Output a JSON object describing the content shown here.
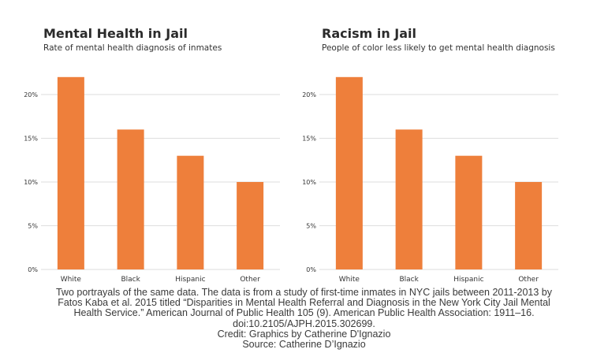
{
  "chart_data": [
    {
      "type": "bar",
      "title": "Mental Health in Jail",
      "subtitle": "Rate of mental health diagnosis of inmates",
      "categories": [
        "White",
        "Black",
        "Hispanic",
        "Other"
      ],
      "values": [
        22,
        16,
        13,
        10
      ],
      "ytick_labels": [
        "0%",
        "5%",
        "10%",
        "15%",
        "20%"
      ],
      "yticks": [
        0,
        5,
        10,
        15,
        20
      ],
      "ylim": [
        0,
        24
      ],
      "grid": true,
      "bar_color": "#ee7f3b"
    },
    {
      "type": "bar",
      "title": "Racism in Jail",
      "subtitle": "People of color less likely to get mental health diagnosis",
      "categories": [
        "White",
        "Black",
        "Hispanic",
        "Other"
      ],
      "values": [
        22,
        16,
        13,
        10
      ],
      "ytick_labels": [
        "0%",
        "5%",
        "10%",
        "15%",
        "20%"
      ],
      "yticks": [
        0,
        5,
        10,
        15,
        20
      ],
      "ylim": [
        0,
        24
      ],
      "grid": true,
      "bar_color": "#ee7f3b"
    }
  ],
  "caption": {
    "lines": [
      "Two portrayals of the same data. The data is from a study of first-time inmates in NYC jails between 2011-2013 by",
      "Fatos Kaba et al. 2015 titled “Disparities in Mental Health Referral and Diagnosis in the New York City Jail Mental",
      "Health Service.” American Journal of Public Health 105 (9). American Public Health Association: 1911–16.",
      "doi:10.2105/AJPH.2015.302699.",
      "Credit: Graphics by Catherine D'Ignazio",
      "Source: Catherine D’Ignazio"
    ]
  },
  "colors": {
    "grid": "#dedede",
    "axis_text": "#333333"
  }
}
